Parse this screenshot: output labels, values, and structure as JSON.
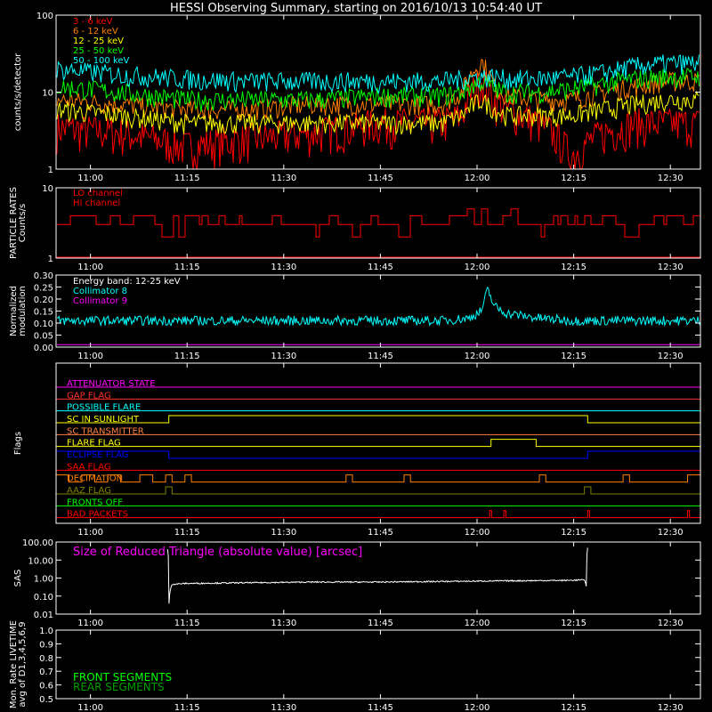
{
  "title": "HESSI Observing Summary, starting on 2016/10/13 10:54:40 UT",
  "time_ticks": [
    "11:00",
    "11:15",
    "11:30",
    "11:45",
    "12:00",
    "12:15",
    "12:30"
  ],
  "time_tick_minutes": [
    5.333,
    20.333,
    35.333,
    50.333,
    65.333,
    80.333,
    95.333
  ],
  "time_range_minutes": [
    0,
    100
  ],
  "colors": {
    "axis": "#ffffff",
    "e3_6": "#ff0000",
    "e6_12": "#ff7f00",
    "e12_25": "#ffff00",
    "e25_50": "#00ff00",
    "e50_100": "#00ffff",
    "lo": "#ff0000",
    "hi": "#ff0000",
    "coll8": "#00ffff",
    "coll9": "#ff00ff",
    "sas": "#ffffff",
    "front": "#00ff00",
    "rear": "#00a000"
  },
  "chart_data": [
    {
      "type": "line",
      "panel": "counts",
      "ylabel": "counts/s/detector",
      "yscale": "log",
      "ylim": [
        1,
        100
      ],
      "yticks": [
        "1",
        "10",
        "100"
      ],
      "legend": [
        "3 - 6 keV",
        "6 - 12 keV",
        "12 - 25 keV",
        "25 - 50 keV",
        "50 - 100 keV"
      ],
      "x": [
        0,
        10,
        20,
        30,
        40,
        50,
        60,
        63,
        66,
        68,
        70,
        75,
        80,
        85,
        90,
        95,
        100
      ],
      "series": [
        {
          "name": "3 - 6 keV",
          "values": [
            3.5,
            3,
            2,
            2.5,
            3,
            4,
            4,
            5,
            15,
            8,
            6,
            4,
            1.5,
            3,
            4,
            4,
            4
          ]
        },
        {
          "name": "6 - 12 keV",
          "values": [
            8,
            7,
            6,
            6,
            7,
            7,
            7,
            10,
            25,
            12,
            9,
            8,
            8,
            10,
            12,
            14,
            14
          ]
        },
        {
          "name": "12 - 25 keV",
          "values": [
            6,
            5,
            4,
            4,
            4,
            4,
            4,
            5,
            8,
            6,
            5,
            5,
            5,
            6,
            7,
            8,
            8
          ]
        },
        {
          "name": "25 - 50 keV",
          "values": [
            12,
            10,
            8,
            8,
            8,
            9,
            9,
            10,
            14,
            11,
            10,
            10,
            11,
            13,
            15,
            16,
            16
          ]
        },
        {
          "name": "50 - 100 keV",
          "values": [
            20,
            17,
            15,
            14,
            14,
            14,
            14,
            15,
            16,
            16,
            15,
            15,
            16,
            18,
            22,
            24,
            24
          ]
        }
      ]
    },
    {
      "type": "line",
      "panel": "particle",
      "ylabel": "PARTICLE RATES\nCounts/s",
      "ylabel_lines": [
        "PARTICLE RATES",
        "Counts/s"
      ],
      "yscale": "log",
      "ylim": [
        1,
        10
      ],
      "yticks": [
        "1",
        "10"
      ],
      "legend": [
        "LO channel",
        "HI channel"
      ],
      "x": [
        0,
        5,
        10,
        15,
        20,
        25,
        30,
        35,
        40,
        45,
        50,
        55,
        60,
        65,
        70,
        75,
        80,
        85,
        90,
        95,
        100
      ],
      "series": [
        {
          "name": "LO channel",
          "values": [
            3,
            3,
            4,
            3,
            4,
            3,
            4,
            4,
            3,
            4,
            3,
            4,
            3,
            4,
            3,
            4,
            3,
            4,
            3,
            4,
            3
          ]
        },
        {
          "name": "HI channel",
          "values": [
            1,
            1,
            1,
            1,
            1,
            1,
            1,
            1,
            1,
            1,
            1,
            1,
            1,
            1,
            1,
            1,
            1,
            1,
            1,
            1,
            1
          ]
        }
      ]
    },
    {
      "type": "line",
      "panel": "modulation",
      "ylabel": "Normalized\nmodulation",
      "ylabel_lines": [
        "Normalized",
        "modulation"
      ],
      "ylim": [
        0,
        0.3
      ],
      "yticks": [
        "0.00",
        "0.05",
        "0.10",
        "0.15",
        "0.20",
        "0.25",
        "0.30"
      ],
      "legend": [
        "Energy band: 12-25 keV",
        "Collimator 8",
        "Collimator 9"
      ],
      "x": [
        0,
        10,
        20,
        30,
        40,
        50,
        60,
        64,
        66,
        67,
        68,
        70,
        75,
        80,
        90,
        100
      ],
      "series": [
        {
          "name": "Collimator 8",
          "values": [
            0.11,
            0.11,
            0.11,
            0.11,
            0.11,
            0.11,
            0.11,
            0.12,
            0.15,
            0.24,
            0.17,
            0.14,
            0.12,
            0.11,
            0.11,
            0.11
          ]
        },
        {
          "name": "Collimator 9",
          "values": [
            0.01,
            0.01,
            0.01,
            0.01,
            0.01,
            0.01,
            0.01,
            0.01,
            0.01,
            0.01,
            0.01,
            0.01,
            0.01,
            0.01,
            0.01,
            0.01
          ]
        }
      ]
    },
    {
      "type": "line",
      "panel": "flags",
      "ylabel": "Flags",
      "flags": [
        {
          "name": "ATTENUATOR STATE",
          "color": "#ff00ff",
          "on": []
        },
        {
          "name": "GAP FLAG",
          "color": "#ff3030",
          "on": []
        },
        {
          "name": "POSSIBLE FLARE",
          "color": "#00ffff",
          "on": []
        },
        {
          "name": "SC IN SUNLIGHT",
          "color": "#ffff00",
          "on": [
            [
              17.5,
              82.5
            ]
          ]
        },
        {
          "name": "SC TRANSMITTER",
          "color": "#ff8040",
          "on": []
        },
        {
          "name": "FLARE FLAG",
          "color": "#ffff00",
          "on": [
            [
              67.5,
              74.5
            ]
          ]
        },
        {
          "name": "ECLIPSE FLAG",
          "color": "#0000ff",
          "on": [
            [
              0,
              17.5
            ],
            [
              82.5,
              100
            ]
          ]
        },
        {
          "name": "SAA FLAG",
          "color": "#ff0000",
          "on": []
        },
        {
          "name": "DECIMATION",
          "color": "#ff8000",
          "on": [
            [
              0,
              2
            ],
            [
              4,
              6
            ],
            [
              8,
              10
            ],
            [
              13,
              15
            ],
            [
              17,
              18
            ],
            [
              20,
              21
            ],
            [
              45,
              46
            ],
            [
              54,
              55
            ],
            [
              75,
              76
            ],
            [
              88,
              89
            ],
            [
              98,
              100
            ]
          ]
        },
        {
          "name": "AAZ FLAG",
          "color": "#808000",
          "on": [
            [
              17,
              18
            ],
            [
              82,
              83
            ]
          ]
        },
        {
          "name": "FRONTS OFF",
          "color": "#00ff00",
          "on": []
        },
        {
          "name": "BAD PACKETS",
          "color": "#ff0000",
          "on": [
            [
              67.3,
              67.6
            ],
            [
              69.5,
              69.8
            ],
            [
              82.5,
              82.8
            ],
            [
              98,
              98.3
            ]
          ]
        }
      ]
    },
    {
      "type": "line",
      "panel": "sas",
      "ylabel": "SAS",
      "yscale": "log",
      "ylim": [
        0.01,
        100
      ],
      "yticks": [
        "0.01",
        "0.10",
        "1.00",
        "10.00",
        "100.00"
      ],
      "legend": [
        "Size of Reduced Triangle (absolute value) [arcsec]"
      ],
      "x": [
        17.3,
        17.5,
        18,
        20,
        30,
        40,
        50,
        60,
        70,
        80,
        82,
        82.3,
        82.5
      ],
      "series": [
        {
          "name": "Size of Reduced Triangle (absolute value) [arcsec]",
          "values": [
            40,
            0.02,
            0.45,
            0.5,
            0.55,
            0.6,
            0.6,
            0.65,
            0.7,
            0.75,
            0.8,
            0.3,
            50
          ]
        }
      ]
    },
    {
      "type": "line",
      "panel": "livetime",
      "ylabel": "Mon. Rate LIVETIME\navg of D1,3,4,5,6,9",
      "ylabel_lines": [
        "Mon. Rate LIVETIME",
        "avg of D1,3,4,5,6,9"
      ],
      "ylim": [
        0.5,
        1.0
      ],
      "yticks": [
        "0.5",
        "0.6",
        "0.7",
        "0.8",
        "0.9",
        "1.0"
      ],
      "legend": [
        "FRONT SEGMENTS",
        "REAR SEGMENTS"
      ],
      "series": []
    }
  ]
}
